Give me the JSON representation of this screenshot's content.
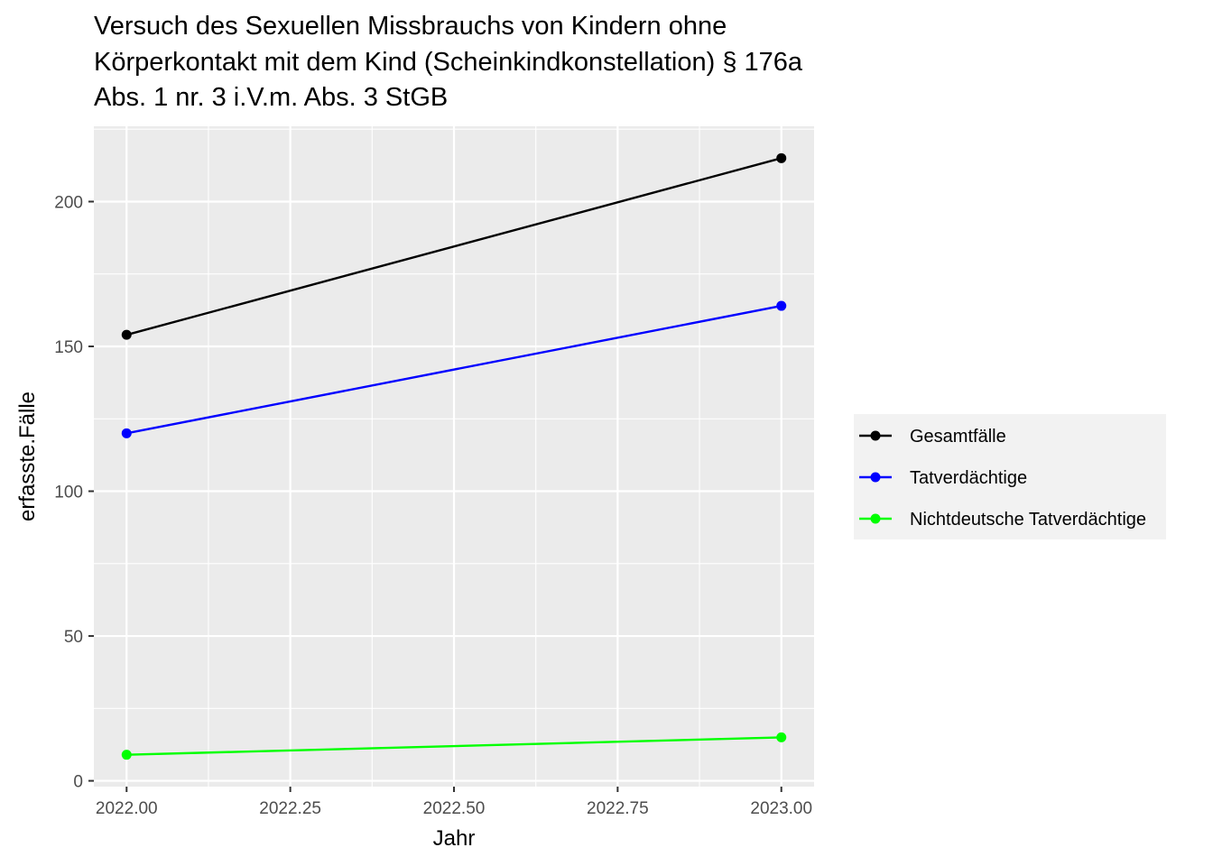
{
  "chart_data": {
    "type": "line",
    "title_lines": [
      "Versuch des Sexuellen Missbrauchs von Kindern ohne",
      "Körperkontakt mit dem Kind (Scheinkindkonstellation) § 176a",
      "Abs. 1 nr. 3 i.V.m. Abs. 3 StGB"
    ],
    "xlabel": "Jahr",
    "ylabel": "erfasste.Fälle",
    "x": [
      2022,
      2023
    ],
    "xlim": [
      2021.95,
      2023.05
    ],
    "ylim": [
      -2,
      226
    ],
    "x_ticks": [
      2022.0,
      2022.25,
      2022.5,
      2022.75,
      2023.0
    ],
    "x_tick_labels": [
      "2022.00",
      "2022.25",
      "2022.50",
      "2022.75",
      "2023.00"
    ],
    "y_ticks": [
      0,
      50,
      100,
      150,
      200
    ],
    "y_tick_labels": [
      "0",
      "50",
      "100",
      "150",
      "200"
    ],
    "grid": true,
    "legend_position": "right",
    "series": [
      {
        "name": "Gesamtfälle",
        "color": "#000000",
        "values": [
          154,
          215
        ]
      },
      {
        "name": "Tatverdächtige",
        "color": "#0000ff",
        "values": [
          120,
          164
        ]
      },
      {
        "name": "Nichtdeutsche Tatverdächtige",
        "color": "#00ff00",
        "values": [
          9,
          15
        ]
      }
    ]
  }
}
